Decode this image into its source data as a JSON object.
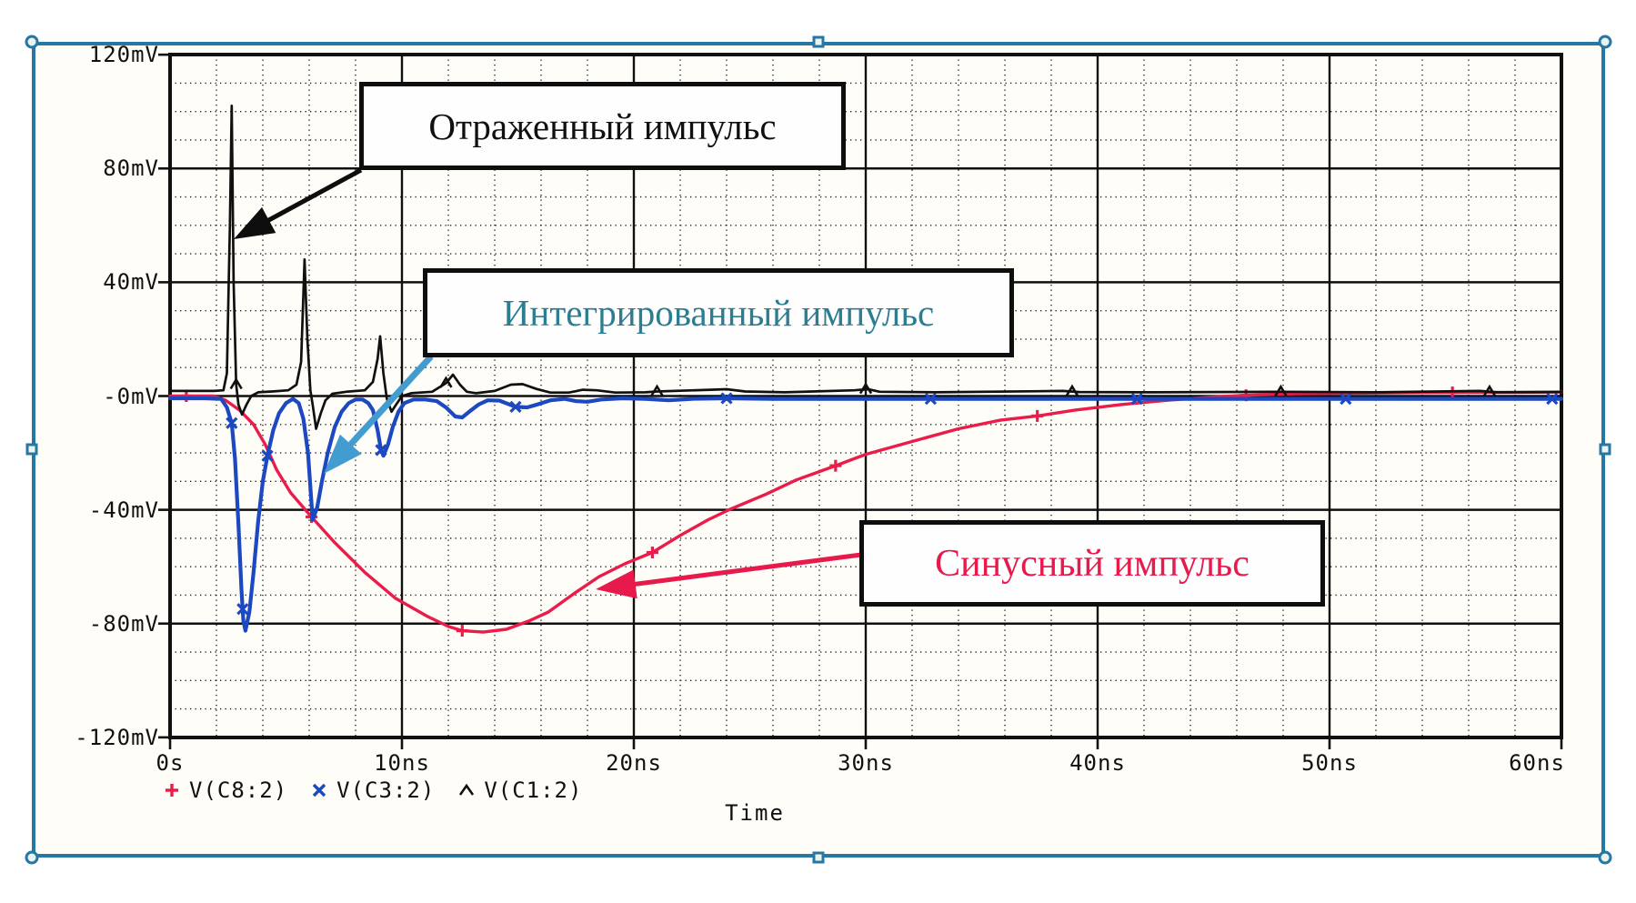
{
  "axes": {
    "x": {
      "label": "Time",
      "ticks": [
        {
          "t": 0,
          "label": "0s"
        },
        {
          "t": 10,
          "label": "10ns"
        },
        {
          "t": 20,
          "label": "20ns"
        },
        {
          "t": 30,
          "label": "30ns"
        },
        {
          "t": 40,
          "label": "40ns"
        },
        {
          "t": 50,
          "label": "50ns"
        },
        {
          "t": 60,
          "label": "60ns"
        }
      ]
    },
    "y": {
      "unit": "mV",
      "ticks": [
        {
          "v": 120,
          "label": "120mV"
        },
        {
          "v": 80,
          "label": "80mV"
        },
        {
          "v": 40,
          "label": "40mV"
        },
        {
          "v": 0,
          "label": "-0mV"
        },
        {
          "v": -40,
          "label": "-40mV"
        },
        {
          "v": -80,
          "label": "-80mV"
        },
        {
          "v": -120,
          "label": "-120mV"
        }
      ]
    }
  },
  "annotations": [
    {
      "id": "reflected",
      "text": "Отраженный импульс",
      "text_color": "#101010",
      "arrow_color": "#0e0e0e",
      "arrow": {
        "from": [
          397,
          187
        ],
        "to": [
          257,
          263
        ],
        "width": 5
      }
    },
    {
      "id": "integrated",
      "text": "Интегрированный импульс",
      "text_color": "#2b7e91",
      "arrow_color": "#429cd0",
      "arrow": {
        "from": [
          474,
          392
        ],
        "to": [
          356,
          521
        ],
        "width": 7
      }
    },
    {
      "id": "sine",
      "text": "Синусный импульс",
      "text_color": "#e8194b",
      "arrow_color": "#e8194b",
      "arrow": {
        "from": [
          947,
          610
        ],
        "to": [
          655,
          648
        ],
        "width": 5
      }
    }
  ],
  "selection_frame": {
    "color": "#2677a3",
    "handle_count": 8
  },
  "chart_data": {
    "type": "line",
    "xlabel": "Time",
    "x_unit": "ns",
    "y_unit": "mV",
    "xlim": [
      0,
      60
    ],
    "ylim": [
      -120,
      120
    ],
    "x_major_step": 10,
    "x_minor_step": 2,
    "y_major_step": 40,
    "y_minor_step": 10,
    "grid": "major solid, minor dotted",
    "legend_position": "bottom-left",
    "series": [
      {
        "name": "V(C8:2)",
        "color": "#e91c4a",
        "marker": "plus",
        "width": 3.4,
        "description": "sine pulse",
        "marker_t": [
          0.7,
          6.1,
          12.6,
          20.8,
          28.7,
          37.4,
          46.4,
          55.3
        ],
        "points": [
          [
            0,
            0
          ],
          [
            1,
            0
          ],
          [
            1.9,
            0
          ],
          [
            2.4,
            -1.5
          ],
          [
            3,
            -5
          ],
          [
            3.6,
            -10
          ],
          [
            4.1,
            -17
          ],
          [
            4.6,
            -26
          ],
          [
            5.2,
            -34
          ],
          [
            6.1,
            -42.5
          ],
          [
            7.1,
            -51.5
          ],
          [
            8.4,
            -62
          ],
          [
            9.7,
            -71
          ],
          [
            11.1,
            -77.5
          ],
          [
            12,
            -81
          ],
          [
            12.6,
            -82.5
          ],
          [
            13.5,
            -83
          ],
          [
            14.5,
            -82
          ],
          [
            15.5,
            -79
          ],
          [
            16.3,
            -76
          ],
          [
            17.5,
            -69
          ],
          [
            18.5,
            -63.5
          ],
          [
            19.6,
            -59
          ],
          [
            20.8,
            -55
          ],
          [
            22,
            -49
          ],
          [
            23.2,
            -43.5
          ],
          [
            24.1,
            -40
          ],
          [
            25.7,
            -34.5
          ],
          [
            27,
            -29.5
          ],
          [
            28.7,
            -24.5
          ],
          [
            30,
            -20.5
          ],
          [
            32,
            -16
          ],
          [
            34,
            -11.5
          ],
          [
            35.8,
            -8.5
          ],
          [
            37.4,
            -7
          ],
          [
            39,
            -5
          ],
          [
            41,
            -3
          ],
          [
            43,
            -1.5
          ],
          [
            45,
            -0.3
          ],
          [
            46.5,
            0.3
          ],
          [
            48.5,
            0.8
          ],
          [
            51,
            1
          ],
          [
            54,
            1.2
          ],
          [
            56,
            1.3
          ],
          [
            58,
            1.3
          ],
          [
            60,
            1.4
          ]
        ]
      },
      {
        "name": "V(C3:2)",
        "color": "#1c49c2",
        "marker": "x",
        "width": 4.2,
        "description": "integrated pulse",
        "marker_t": [
          2.66,
          3.13,
          4.2,
          9.1,
          14.9,
          24,
          32.8,
          41.7,
          50.7,
          59.6
        ],
        "points": [
          [
            0,
            -0.8
          ],
          [
            1.5,
            -0.8
          ],
          [
            2.2,
            -1
          ],
          [
            2.45,
            -4
          ],
          [
            2.66,
            -9.5
          ],
          [
            2.8,
            -22
          ],
          [
            2.95,
            -45
          ],
          [
            3.08,
            -68
          ],
          [
            3.16,
            -79
          ],
          [
            3.25,
            -82.5
          ],
          [
            3.42,
            -76
          ],
          [
            3.6,
            -62
          ],
          [
            3.8,
            -44
          ],
          [
            4,
            -30
          ],
          [
            4.2,
            -21
          ],
          [
            4.45,
            -12
          ],
          [
            4.7,
            -6
          ],
          [
            5,
            -2.5
          ],
          [
            5.3,
            -1
          ],
          [
            5.55,
            -2.5
          ],
          [
            5.75,
            -8
          ],
          [
            5.95,
            -20
          ],
          [
            6.05,
            -32
          ],
          [
            6.15,
            -43.5
          ],
          [
            6.35,
            -39
          ],
          [
            6.55,
            -30
          ],
          [
            6.8,
            -20
          ],
          [
            7.1,
            -11
          ],
          [
            7.4,
            -5.5
          ],
          [
            7.7,
            -2.5
          ],
          [
            8,
            -1.2
          ],
          [
            8.3,
            -1.2
          ],
          [
            8.55,
            -2.5
          ],
          [
            8.75,
            -5
          ],
          [
            8.95,
            -12
          ],
          [
            9.1,
            -19
          ],
          [
            9.2,
            -21
          ],
          [
            9.4,
            -17
          ],
          [
            9.6,
            -11
          ],
          [
            9.85,
            -5.5
          ],
          [
            10.1,
            -2.5
          ],
          [
            10.5,
            -1.2
          ],
          [
            11,
            -1.2
          ],
          [
            11.5,
            -1.8
          ],
          [
            11.9,
            -4
          ],
          [
            12.3,
            -7.2
          ],
          [
            12.6,
            -7.5
          ],
          [
            12.9,
            -5.5
          ],
          [
            13.3,
            -3
          ],
          [
            13.7,
            -1.5
          ],
          [
            14.2,
            -1.6
          ],
          [
            14.9,
            -3.8
          ],
          [
            15.4,
            -4
          ],
          [
            15.9,
            -2.8
          ],
          [
            16.4,
            -1.5
          ],
          [
            17,
            -1
          ],
          [
            17.5,
            -1.8
          ],
          [
            18,
            -2
          ],
          [
            18.6,
            -1.2
          ],
          [
            19.5,
            -0.8
          ],
          [
            20.5,
            -1
          ],
          [
            21.5,
            -1.5
          ],
          [
            22.5,
            -1
          ],
          [
            24,
            -0.8
          ],
          [
            26,
            -1
          ],
          [
            28,
            -1
          ],
          [
            32.8,
            -1
          ],
          [
            41.7,
            -1
          ],
          [
            50.7,
            -1
          ],
          [
            60,
            -1
          ]
        ]
      },
      {
        "name": "V(C1:2)",
        "color": "#101010",
        "marker": "caret",
        "width": 2.7,
        "description": "reflected pulse",
        "marker_t": [
          2.85,
          11.9,
          21,
          30,
          38.9,
          47.9,
          56.9
        ],
        "points": [
          [
            0,
            1.8
          ],
          [
            1.9,
            1.8
          ],
          [
            2.3,
            2
          ],
          [
            2.45,
            8
          ],
          [
            2.58,
            60
          ],
          [
            2.66,
            102
          ],
          [
            2.74,
            40
          ],
          [
            2.85,
            4
          ],
          [
            2.95,
            -3
          ],
          [
            3.1,
            -6.5
          ],
          [
            3.3,
            -3
          ],
          [
            3.5,
            0
          ],
          [
            3.8,
            1.3
          ],
          [
            4.4,
            1.6
          ],
          [
            5.1,
            2
          ],
          [
            5.45,
            4
          ],
          [
            5.65,
            12
          ],
          [
            5.8,
            48
          ],
          [
            5.92,
            20
          ],
          [
            6.05,
            2
          ],
          [
            6.15,
            -3
          ],
          [
            6.3,
            -11.5
          ],
          [
            6.5,
            -6
          ],
          [
            6.7,
            -1.5
          ],
          [
            7,
            0.8
          ],
          [
            7.6,
            1.5
          ],
          [
            8.4,
            2
          ],
          [
            8.75,
            5
          ],
          [
            8.95,
            13
          ],
          [
            9.06,
            21
          ],
          [
            9.2,
            8
          ],
          [
            9.35,
            -1
          ],
          [
            9.55,
            -5.5
          ],
          [
            9.75,
            -3
          ],
          [
            10,
            0
          ],
          [
            10.4,
            1
          ],
          [
            11.3,
            1.5
          ],
          [
            11.9,
            4.5
          ],
          [
            12.2,
            7.5
          ],
          [
            12.5,
            4
          ],
          [
            12.8,
            1.5
          ],
          [
            13.2,
            1
          ],
          [
            14,
            1.8
          ],
          [
            14.7,
            4
          ],
          [
            15.2,
            4.2
          ],
          [
            15.8,
            2.5
          ],
          [
            16.4,
            1.2
          ],
          [
            17.2,
            1.2
          ],
          [
            17.8,
            2.2
          ],
          [
            18.4,
            2
          ],
          [
            19.2,
            1.2
          ],
          [
            20.5,
            1.3
          ],
          [
            21,
            1.6
          ],
          [
            23.3,
            2.2
          ],
          [
            24,
            2.4
          ],
          [
            24.8,
            1.6
          ],
          [
            26.5,
            1.3
          ],
          [
            29.5,
            2
          ],
          [
            30.1,
            2.4
          ],
          [
            30.6,
            1.5
          ],
          [
            33,
            1.3
          ],
          [
            38.5,
            1.8
          ],
          [
            39.2,
            1.4
          ],
          [
            42,
            1.3
          ],
          [
            47.9,
            1.5
          ],
          [
            52,
            1.3
          ],
          [
            56.5,
            1.8
          ],
          [
            57.2,
            1.3
          ],
          [
            60,
            1.4
          ]
        ]
      }
    ]
  }
}
